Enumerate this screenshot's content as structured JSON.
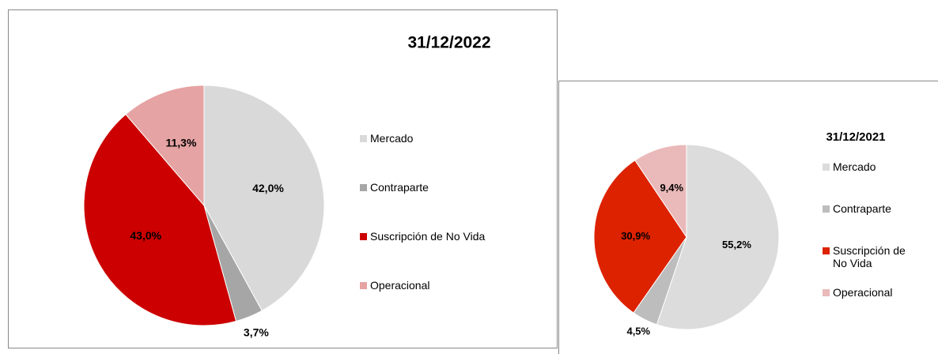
{
  "chart_data": [
    {
      "type": "pie",
      "title": "31/12/2022",
      "categories": [
        "Mercado",
        "Contraparte",
        "Suscripción de No Vida",
        "Operacional"
      ],
      "values": [
        42.0,
        3.7,
        43.0,
        11.3
      ],
      "value_labels": [
        "42,0%",
        "3,7%",
        "43,0%",
        "11,3%"
      ],
      "colors": [
        "#d9d9d9",
        "#a6a6a6",
        "#cc0000",
        "#e6a3a3"
      ]
    },
    {
      "type": "pie",
      "title": "31/12/2021",
      "categories": [
        "Mercado",
        "Contraparte",
        "Suscripción de No Vida",
        "Operacional"
      ],
      "values": [
        55.2,
        4.5,
        30.9,
        9.4
      ],
      "value_labels": [
        "55,2%",
        "4,5%",
        "30,9%",
        "9,4%"
      ],
      "colors": [
        "#dcdcdc",
        "#bdbdbd",
        "#dd2200",
        "#eab9b9"
      ]
    }
  ]
}
